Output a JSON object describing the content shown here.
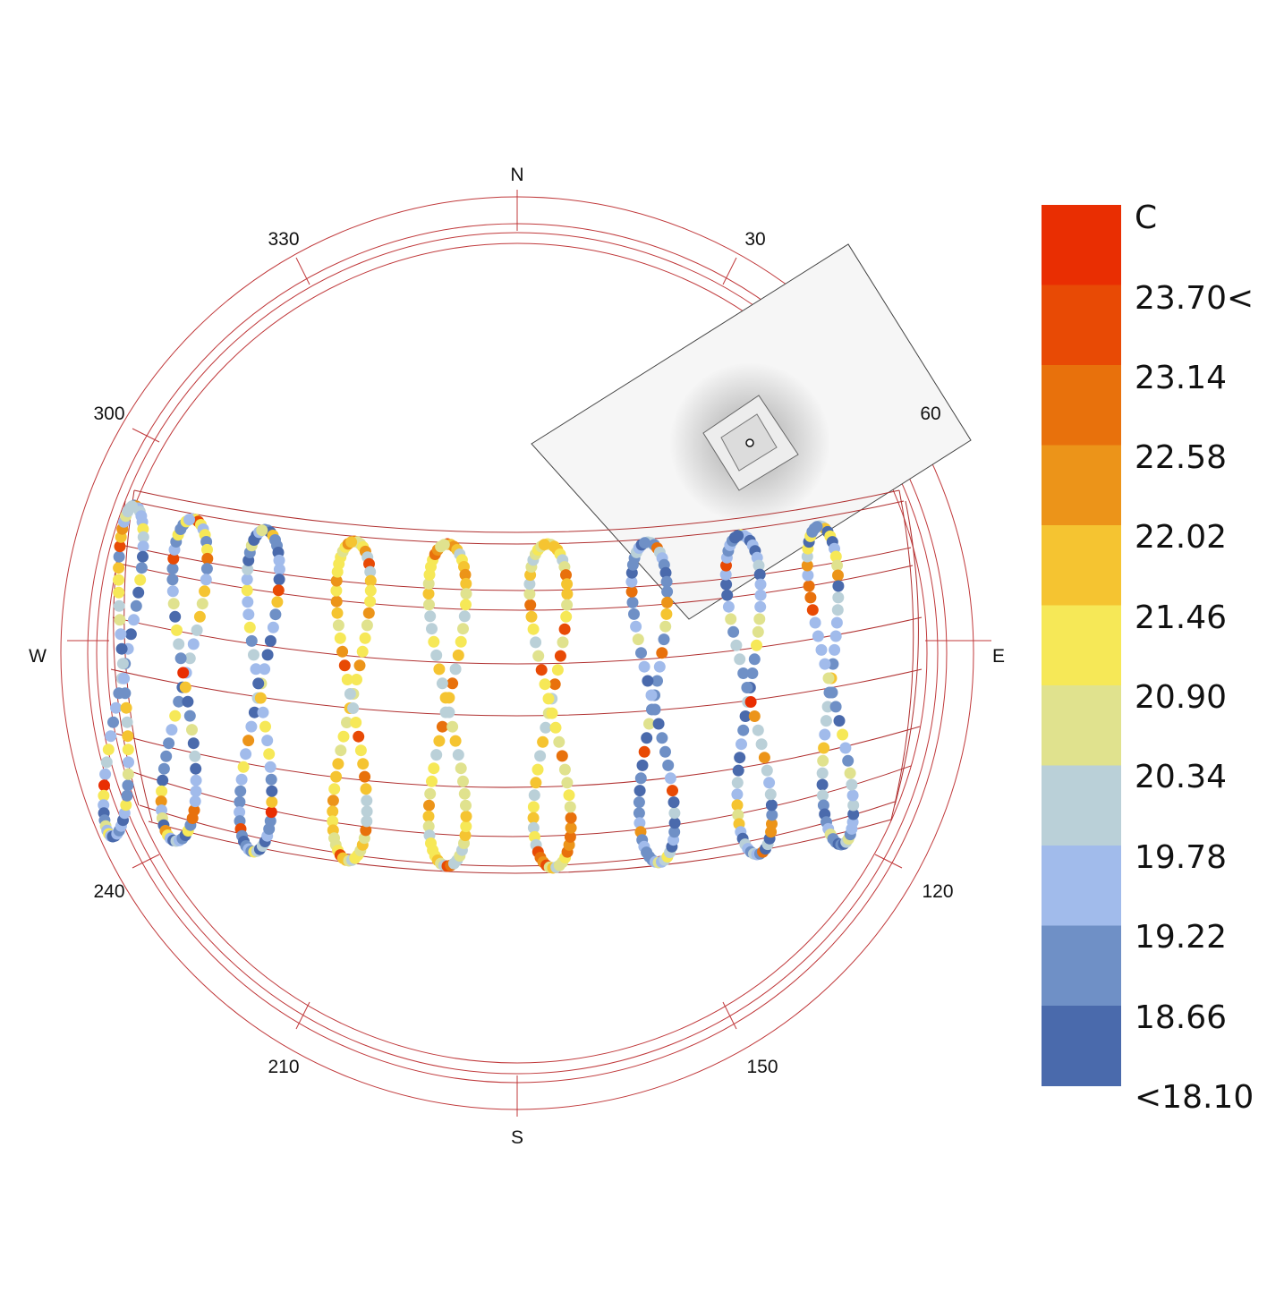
{
  "compass": {
    "north": "N",
    "south": "S",
    "east": "E",
    "west": "W",
    "azimuths": [
      "30",
      "60",
      "120",
      "150",
      "210",
      "240",
      "300",
      "330"
    ]
  },
  "legend": {
    "unit": "C",
    "labels": [
      "23.70<",
      "23.14",
      "22.58",
      "22.02",
      "21.46",
      "20.90",
      "20.34",
      "19.78",
      "19.22",
      "18.66",
      "<18.10"
    ],
    "colors": [
      "#e92e02",
      "#e84a05",
      "#e8710c",
      "#ec9419",
      "#f5c431",
      "#f6e857",
      "#e0e28e",
      "#bad0d8",
      "#a1bbeb",
      "#6f90c6",
      "#4a6aac"
    ]
  },
  "colors": {
    "gridline": "#c0393b",
    "sunpath_line": "#b03030"
  }
}
